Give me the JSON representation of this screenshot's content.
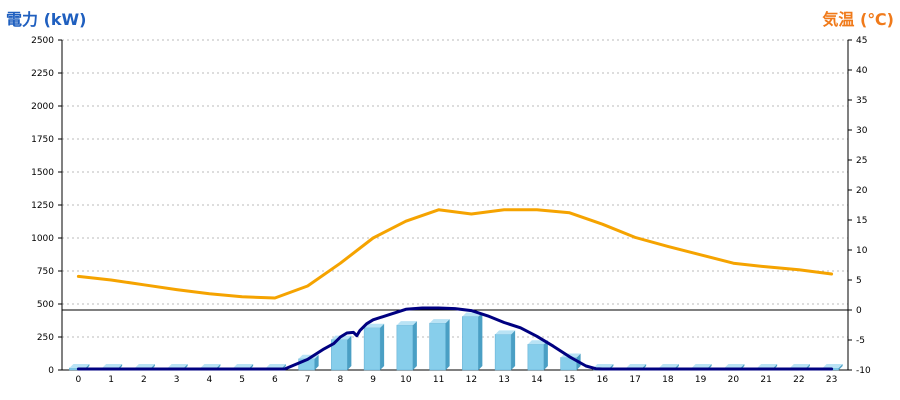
{
  "chart_data": {
    "type": "bar",
    "y_left_label": "電力 (kW)",
    "y_right_label": "気温 (℃)",
    "x": [
      0,
      1,
      2,
      3,
      4,
      5,
      6,
      7,
      8,
      9,
      10,
      11,
      12,
      13,
      14,
      15,
      16,
      17,
      18,
      19,
      20,
      21,
      22,
      23
    ],
    "y_left_ticks": [
      0,
      250,
      500,
      750,
      1000,
      1250,
      1500,
      1750,
      2000,
      2250,
      2500
    ],
    "y_right_ticks": [
      -10,
      -5,
      0,
      5,
      10,
      15,
      20,
      25,
      30,
      35,
      40,
      45
    ],
    "ylim_left": [
      0,
      2500
    ],
    "ylim_right": [
      -10,
      45
    ],
    "grid": true,
    "colors": {
      "bars": "#87ceeb",
      "bars_side": "#4a9fc4",
      "temp_line": "#f5a300",
      "power_line": "#000080"
    },
    "series": [
      {
        "kind": "bar",
        "axis": "left",
        "values": [
          5,
          5,
          5,
          5,
          5,
          5,
          5,
          85,
          230,
          320,
          340,
          355,
          405,
          270,
          195,
          95,
          8,
          5,
          5,
          5,
          5,
          5,
          5,
          5
        ]
      },
      {
        "kind": "line",
        "axis": "right",
        "x": [
          0,
          1,
          2,
          3,
          4,
          5,
          6,
          7,
          8,
          9,
          10,
          11,
          12,
          13,
          14,
          15,
          16,
          17,
          18,
          19,
          20,
          21,
          22,
          23
        ],
        "values": [
          5.6,
          5.0,
          4.2,
          3.4,
          2.7,
          2.2,
          2.0,
          4.0,
          7.8,
          12.0,
          14.8,
          16.7,
          16.0,
          16.7,
          16.7,
          16.2,
          14.3,
          12.1,
          10.6,
          9.2,
          7.8,
          7.2,
          6.7,
          6.0
        ]
      },
      {
        "kind": "line",
        "axis": "left",
        "x": [
          0,
          1,
          2,
          3,
          4,
          5,
          6,
          6.3,
          7,
          7.5,
          7.8,
          8,
          8.2,
          8.4,
          8.5,
          8.6,
          8.8,
          9,
          9.5,
          10,
          10.5,
          11,
          11.5,
          12,
          12.5,
          13,
          13.5,
          14,
          14.5,
          15,
          15.5,
          15.8,
          16,
          17,
          18,
          19,
          20,
          21,
          22,
          23
        ],
        "values": [
          0,
          0,
          0,
          0,
          0,
          0,
          0,
          5,
          80,
          160,
          200,
          250,
          280,
          285,
          260,
          300,
          350,
          380,
          420,
          460,
          470,
          470,
          465,
          450,
          410,
          360,
          320,
          255,
          180,
          100,
          30,
          10,
          0,
          0,
          0,
          0,
          0,
          0,
          0,
          0
        ]
      }
    ]
  }
}
